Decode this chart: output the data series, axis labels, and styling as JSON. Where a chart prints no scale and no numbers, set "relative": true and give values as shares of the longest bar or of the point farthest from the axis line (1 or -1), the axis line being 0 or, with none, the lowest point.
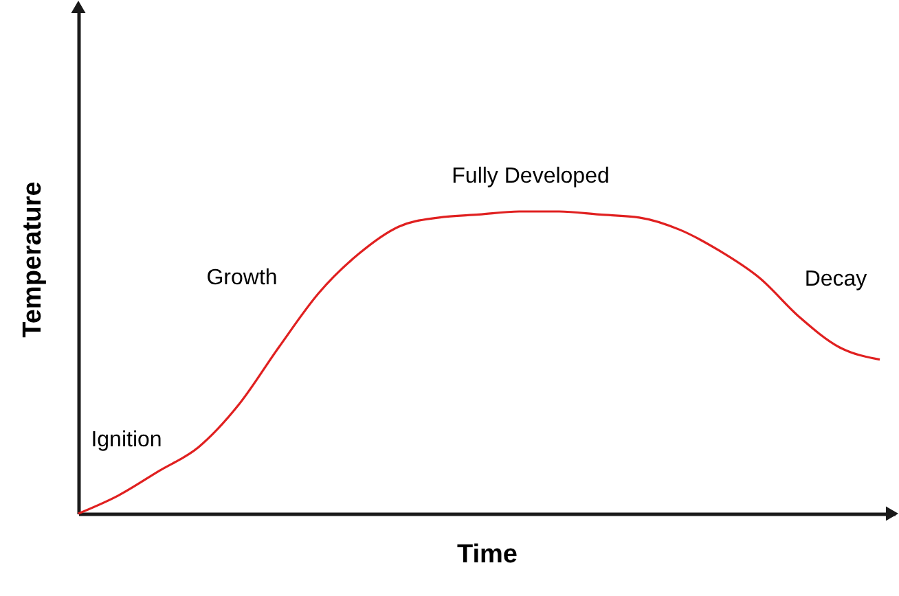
{
  "chart_data": {
    "type": "line",
    "xlabel": "Time",
    "ylabel": "Temperature",
    "relative": true,
    "line_style": "solid",
    "categories": [
      null,
      null,
      null,
      null,
      null,
      null,
      null,
      null,
      null,
      null,
      null,
      null,
      null,
      null,
      null,
      null,
      null,
      null,
      null,
      null,
      null
    ],
    "series": [
      {
        "color": "#e02020",
        "values": [
          0.0,
          0.06,
          0.14,
          0.22,
          0.36,
          0.55,
          0.73,
          0.86,
          0.95,
          0.98,
          0.99,
          1.0,
          1.0,
          0.99,
          0.98,
          0.94,
          0.87,
          0.78,
          0.65,
          0.55,
          0.51
        ]
      }
    ],
    "annotations": [
      "Ignition",
      "Growth",
      "Fully Developed",
      "Decay"
    ]
  }
}
